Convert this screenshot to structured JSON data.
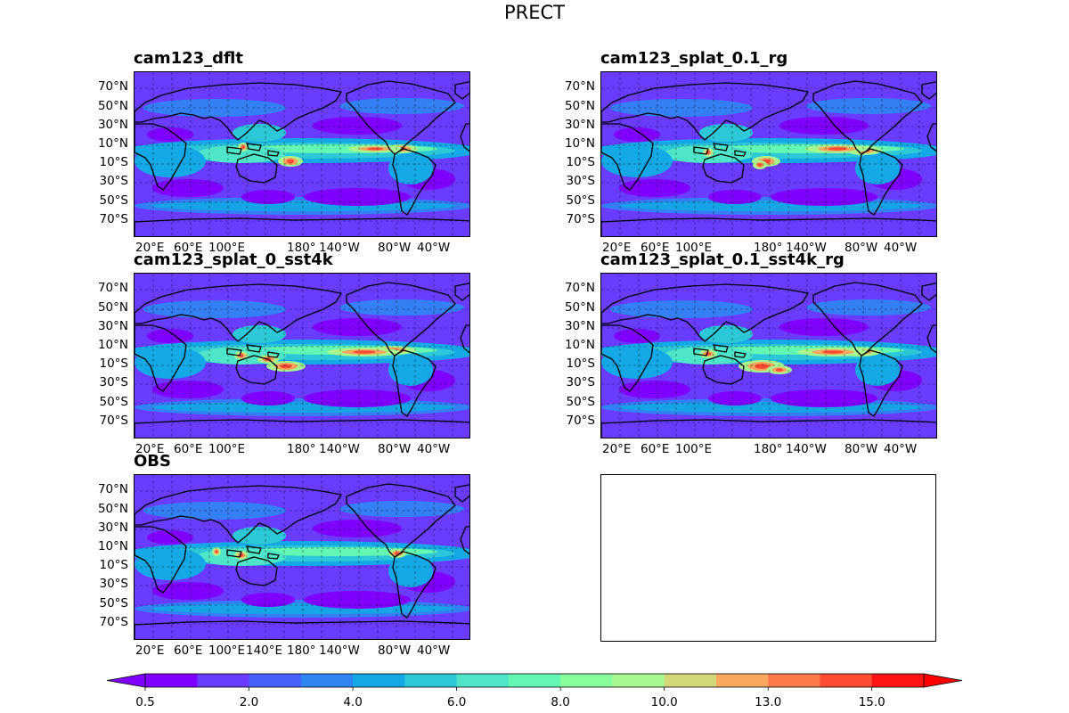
{
  "figure": {
    "suptitle": "PRECT"
  },
  "panels": [
    {
      "title": "cam123_dflt"
    },
    {
      "title": "cam123_splat_0.1_rg"
    },
    {
      "title": "cam123_splat_0_sst4k"
    },
    {
      "title": "cam123_splat_0.1_sst4k_rg"
    },
    {
      "title": "OBS"
    }
  ],
  "axes": {
    "lat_labels": [
      "70°N",
      "50°N",
      "30°N",
      "10°N",
      "10°S",
      "30°S",
      "50°S",
      "70°S"
    ],
    "lon_labels": [
      "20°E",
      "60°E",
      "100°E",
      "180°",
      "140°W",
      "80°W",
      "40°W"
    ],
    "lon_labels_obs": [
      "20°E",
      "60°E",
      "100°E",
      "140°E",
      "180°",
      "140°W",
      "80°W",
      "40°W"
    ]
  },
  "colorbar": {
    "ticks": [
      "0.5",
      "2.0",
      "4.0",
      "6.0",
      "8.0",
      "10.0",
      "13.0",
      "15.0"
    ],
    "levels": [
      0.5,
      1.0,
      2.0,
      3.0,
      4.0,
      5.0,
      6.0,
      7.0,
      8.0,
      9.0,
      10.0,
      11.0,
      13.0,
      14.0,
      15.0,
      16.0
    ],
    "colors": [
      "#8000ff",
      "#6a3cff",
      "#4661fa",
      "#2f86f2",
      "#14a9e6",
      "#2dc8d8",
      "#4fe5c8",
      "#62f8b3",
      "#89fe9c",
      "#a6f790",
      "#d2d77a",
      "#fba85f",
      "#ff7a4a",
      "#ff4b32",
      "#ff1414"
    ],
    "extend": "both",
    "under_color": "#8000ff",
    "over_color": "#ff0000"
  }
}
